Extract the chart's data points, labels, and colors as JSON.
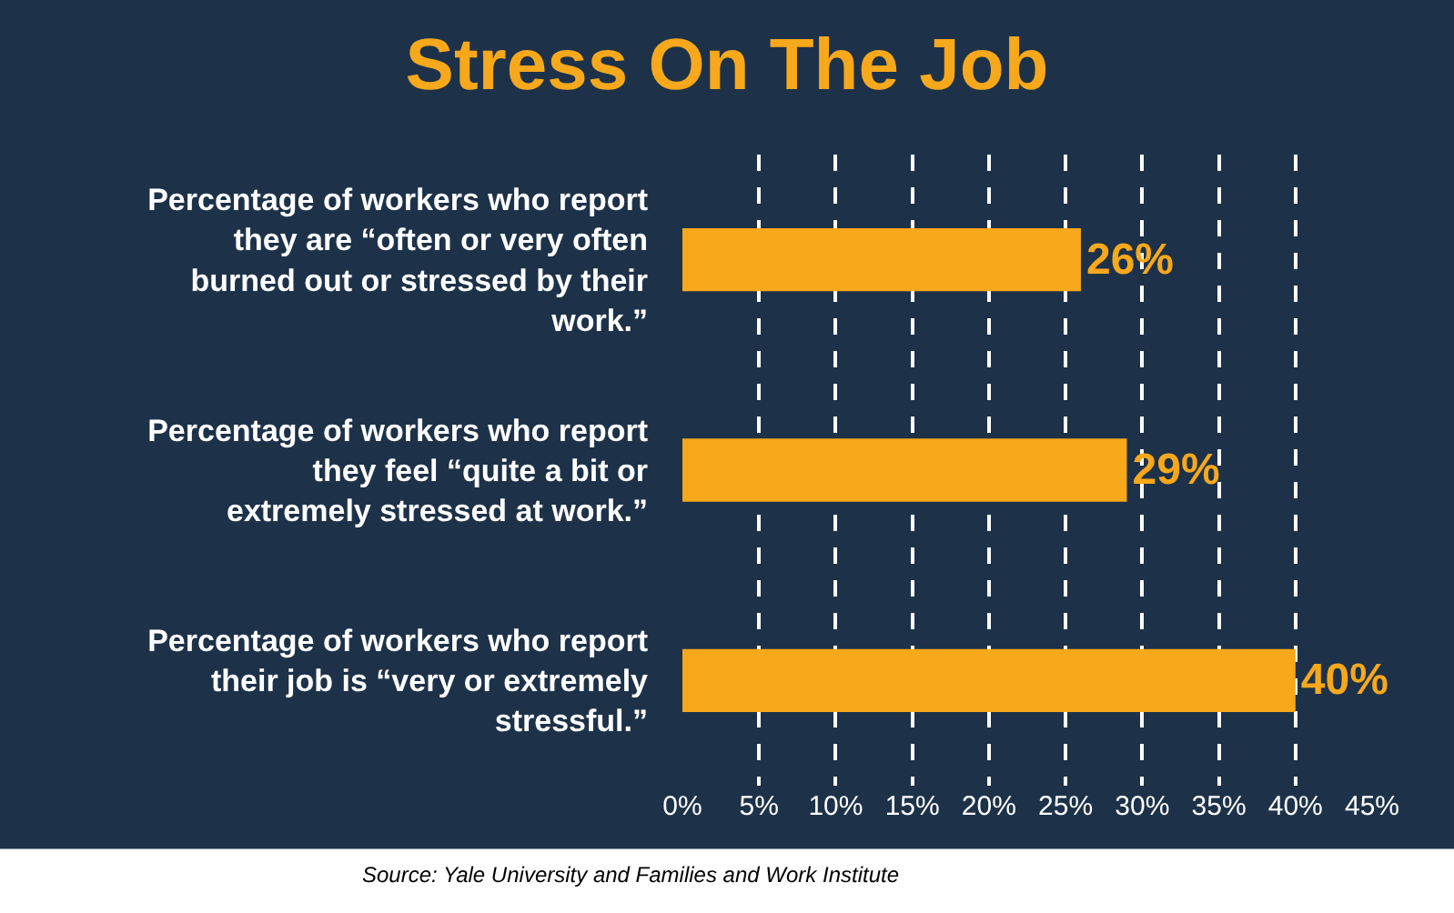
{
  "chart_data": {
    "type": "bar",
    "orientation": "horizontal",
    "title": "Stress On The Job",
    "categories": [
      "Percentage of workers who report they are “often or very often burned out or stressed by their work.”",
      "Percentage of workers who report they feel “quite a bit or extremely stressed at work.”",
      "Percentage of workers who report their job is “very or extremely stressful.”"
    ],
    "values": [
      26,
      29,
      40
    ],
    "color": "#f7a81b",
    "value_labels": [
      "26%",
      "29%",
      "40%"
    ],
    "xlim": [
      0,
      45
    ],
    "xticks": [
      {
        "value": 0,
        "label": "0%"
      },
      {
        "value": 5,
        "label": "5%"
      },
      {
        "value": 10,
        "label": "10%"
      },
      {
        "value": 15,
        "label": "15%"
      },
      {
        "value": 20,
        "label": "20%"
      },
      {
        "value": 25,
        "label": "25%"
      },
      {
        "value": 30,
        "label": "30%"
      },
      {
        "value": 35,
        "label": "35%"
      },
      {
        "value": 40,
        "label": "40%"
      },
      {
        "value": 45,
        "label": "45%"
      }
    ],
    "grid": "x",
    "annotations": [
      "Source: Yale University and Families and Work Institute"
    ]
  }
}
